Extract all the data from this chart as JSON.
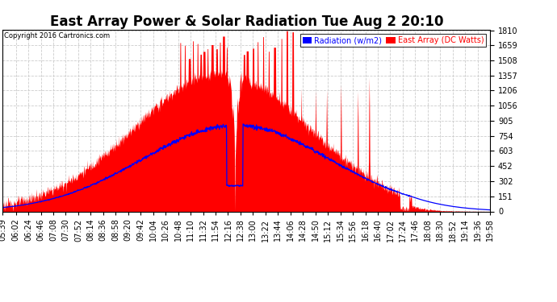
{
  "title": "East Array Power & Solar Radiation Tue Aug 2 20:10",
  "copyright": "Copyright 2016 Cartronics.com",
  "legend_labels": [
    "Radiation (w/m2)",
    "East Array (DC Watts)"
  ],
  "legend_colors": [
    "blue",
    "red"
  ],
  "y_max": 1809.5,
  "y_min": 0.0,
  "y_ticks": [
    0.0,
    150.8,
    301.6,
    452.4,
    603.2,
    754.0,
    904.8,
    1055.6,
    1206.4,
    1357.2,
    1508.0,
    1658.8,
    1809.5
  ],
  "background_color": "#ffffff",
  "plot_bg_color": "#ffffff",
  "grid_color": "#cccccc",
  "radiation_color": "blue",
  "power_color": "red",
  "title_fontsize": 12,
  "tick_fontsize": 7,
  "tick_times_str": [
    "05:39",
    "06:02",
    "06:24",
    "06:46",
    "07:08",
    "07:30",
    "07:52",
    "08:14",
    "08:36",
    "08:58",
    "09:20",
    "09:42",
    "10:04",
    "10:26",
    "10:48",
    "11:10",
    "11:32",
    "11:54",
    "12:16",
    "12:38",
    "13:00",
    "13:22",
    "13:44",
    "14:06",
    "14:28",
    "14:50",
    "15:12",
    "15:34",
    "15:56",
    "16:18",
    "16:40",
    "17:02",
    "17:24",
    "17:46",
    "18:08",
    "18:30",
    "18:52",
    "19:14",
    "19:36",
    "19:58"
  ]
}
